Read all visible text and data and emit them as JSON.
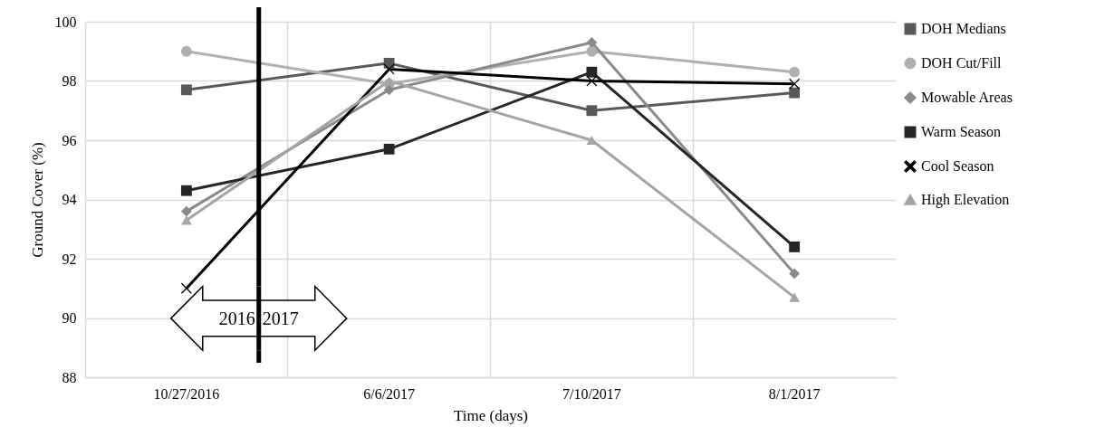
{
  "chart_data": {
    "type": "line",
    "xlabel": "Time (days)",
    "ylabel": "Ground Cover (%)",
    "categories": [
      "10/27/2016",
      "6/6/2017",
      "7/10/2017",
      "8/1/2017"
    ],
    "series": [
      {
        "name": "DOH Medians",
        "color": "#595959",
        "marker": "square",
        "values": [
          97.7,
          98.6,
          97.0,
          97.6
        ]
      },
      {
        "name": "DOH Cut/Fill",
        "color": "#b0b0b0",
        "marker": "circle",
        "values": [
          99.0,
          97.9,
          99.0,
          98.3
        ]
      },
      {
        "name": "Mowable Areas",
        "color": "#8a8a8a",
        "marker": "diamond",
        "values": [
          93.6,
          97.7,
          99.3,
          91.5
        ]
      },
      {
        "name": "Warm Season",
        "color": "#262626",
        "marker": "square",
        "values": [
          94.3,
          95.7,
          98.3,
          92.4
        ]
      },
      {
        "name": "Cool Season",
        "color": "#000000",
        "marker": "cross",
        "values": [
          91.0,
          98.4,
          98.0,
          97.9
        ]
      },
      {
        "name": "High Elevation",
        "color": "#a5a5a5",
        "marker": "triangle",
        "values": [
          93.3,
          98.0,
          96.0,
          90.7
        ]
      }
    ],
    "ylim": [
      88,
      100
    ],
    "yticks": [
      88,
      90,
      92,
      94,
      96,
      98,
      100
    ],
    "grid": true,
    "legend": "right",
    "annotations": [
      "2016",
      "2017"
    ]
  }
}
